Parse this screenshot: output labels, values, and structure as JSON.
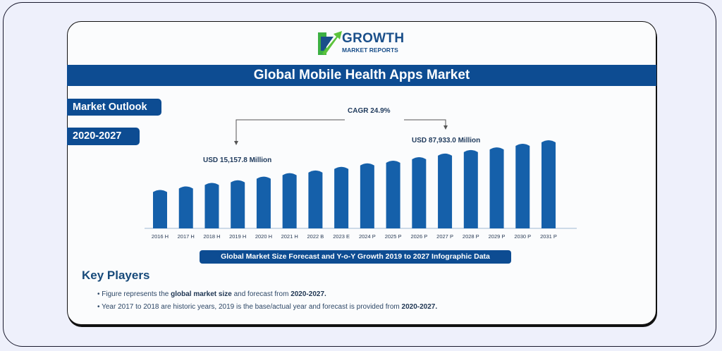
{
  "logo": {
    "line1": "GROWTH",
    "line2": "MARKET REPORTS"
  },
  "title": "Global Mobile Health Apps Market",
  "tags": {
    "outlook": "Market Outlook",
    "period": "2020-2027"
  },
  "colors": {
    "primary": "#0d4c92",
    "bar": "#1560aa",
    "logo_green": "#3cb043"
  },
  "chart_data": {
    "type": "bar",
    "title": "",
    "categories": [
      "2016 H",
      "2017 H",
      "2018 H",
      "2019 H",
      "2020 H",
      "2021 H",
      "2022 B",
      "2023 E",
      "2024 P",
      "2025 P",
      "2026 P",
      "2027 P",
      "2028 P",
      "2029 P",
      "2030 P",
      "2031 P"
    ],
    "values": [
      44,
      48,
      52,
      55,
      59,
      63,
      66,
      70,
      74,
      77,
      81,
      85,
      89,
      92,
      96,
      100
    ],
    "value_unit": "relative bar height (% of 2031 bar); no y-axis printed",
    "annotations": {
      "cagr": "CAGR 24.9%",
      "start_value": "USD 15,157.8 Million",
      "end_value": "USD 87,933.0 Million"
    },
    "grid": false,
    "legend": "none"
  },
  "caption": "Global Market Size Forecast and Y-o-Y Growth 2019 to 2027 Infographic Data",
  "key_players": {
    "heading": "Key Players",
    "bullets": [
      [
        {
          "t": "Figure represents the ",
          "b": false
        },
        {
          "t": "global market size",
          "b": true
        },
        {
          "t": " and forecast from ",
          "b": false
        },
        {
          "t": "2020-2027.",
          "b": true
        }
      ],
      [
        {
          "t": "Year 2017 to 2018 are historic years, 2019 is the base/actual year and forecast is provided from ",
          "b": false
        },
        {
          "t": "2020-2027.",
          "b": true
        }
      ]
    ]
  }
}
